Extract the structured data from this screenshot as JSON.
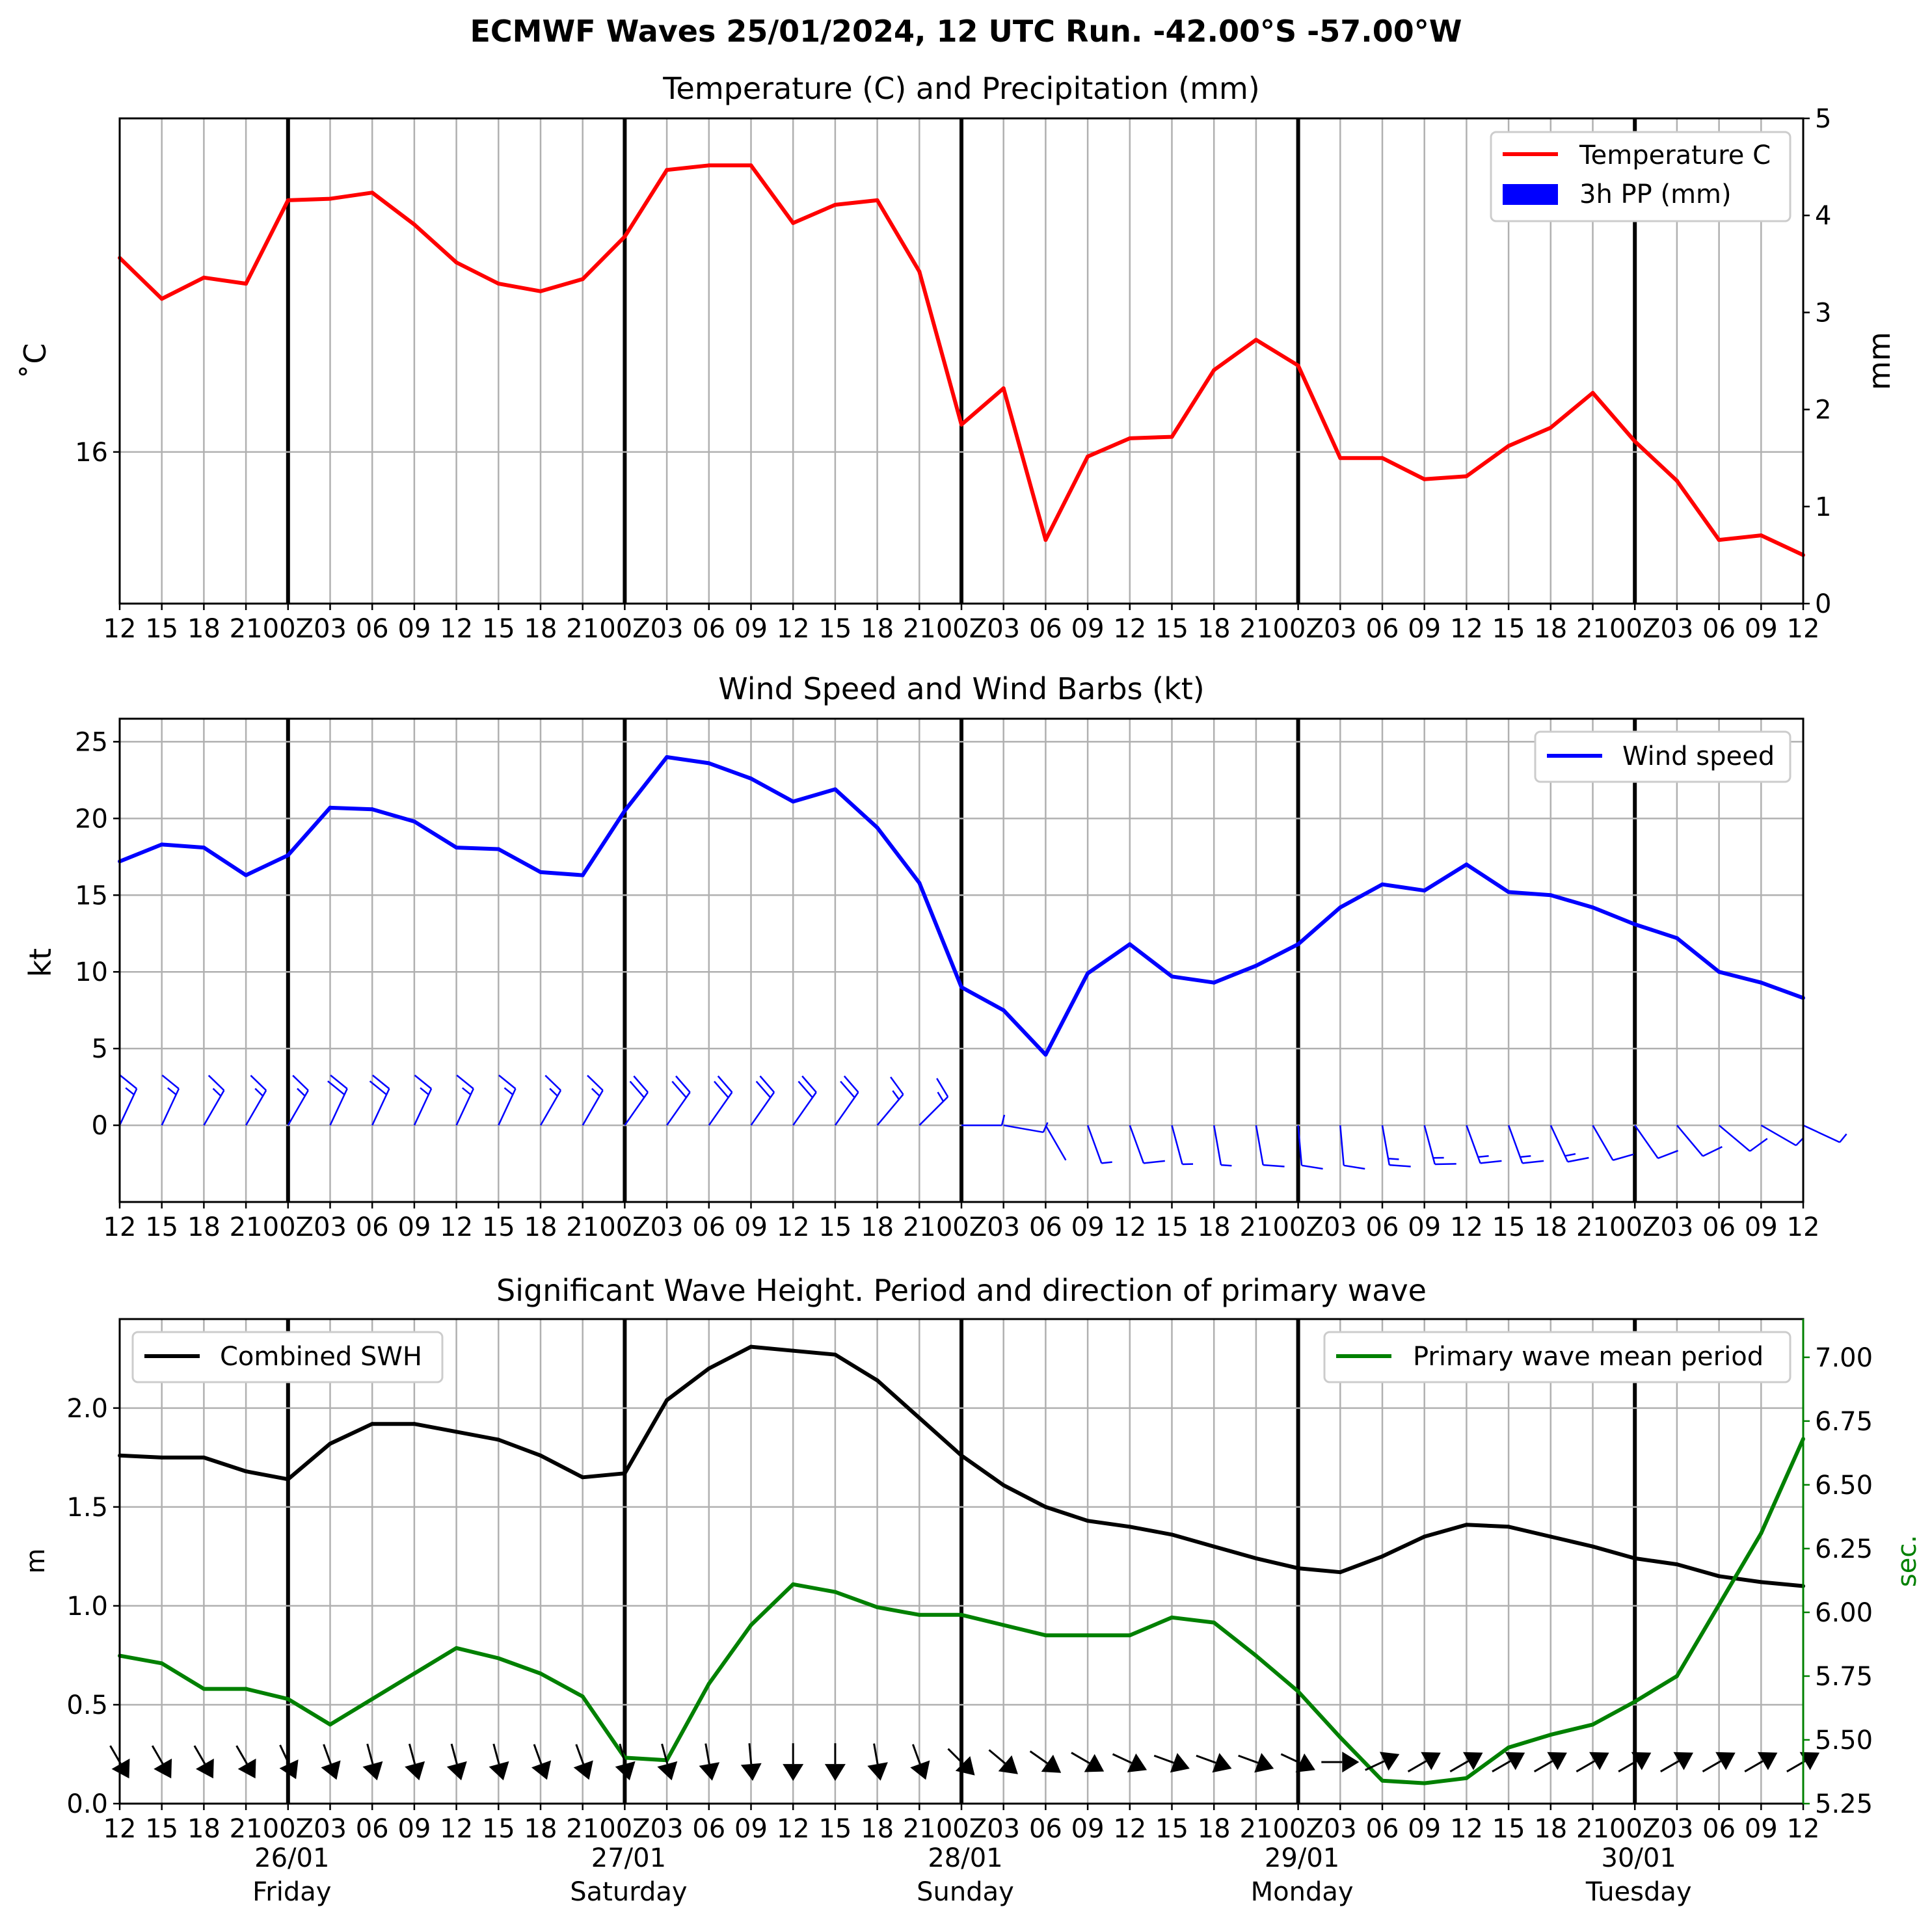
{
  "suptitle": "ECMWF Waves 25/01/2024, 12 UTC Run. -42.00°S -57.00°W",
  "x_tick_labels": [
    "12",
    "15",
    "18",
    "21",
    "00Z",
    "03",
    "06",
    "09",
    "12",
    "15",
    "18",
    "21",
    "00Z",
    "03",
    "06",
    "09",
    "12",
    "15",
    "18",
    "21",
    "00Z",
    "03",
    "06",
    "09",
    "12",
    "15",
    "18",
    "21",
    "00Z",
    "03",
    "06",
    "09",
    "12",
    "15",
    "18",
    "21",
    "00Z",
    "03",
    "06",
    "09",
    "12"
  ],
  "day_labels": [
    {
      "date": "26/01",
      "day": "Friday"
    },
    {
      "date": "27/01",
      "day": "Saturday"
    },
    {
      "date": "28/01",
      "day": "Sunday"
    },
    {
      "date": "29/01",
      "day": "Monday"
    },
    {
      "date": "30/01",
      "day": "Tuesday"
    }
  ],
  "colors": {
    "temperature": "#ff0000",
    "precipitation": "#0000ff",
    "wind": "#0000ff",
    "swh": "#000000",
    "period": "#008000",
    "grid": "#b0b0b0"
  },
  "chart_data": [
    {
      "type": "line",
      "title": "Temperature (C) and Precipitation (mm)",
      "ylabel": "$^\\circ$C",
      "ylabel_display": "˚C",
      "y2label": "mm",
      "ylim": [
        15.0,
        18.2
      ],
      "yticks": [
        16
      ],
      "y2lim": [
        0,
        5
      ],
      "y2ticks": [
        0,
        1,
        2,
        3,
        4,
        5
      ],
      "legend": [
        "Temperature C",
        "3h PP (mm)"
      ],
      "legend_loc": "upper right",
      "grid": true,
      "series": [
        {
          "name": "Temperature C",
          "axis": "left",
          "values": [
            17.28,
            17.01,
            17.15,
            17.11,
            17.66,
            17.67,
            17.71,
            17.5,
            17.25,
            17.11,
            17.06,
            17.14,
            17.42,
            17.86,
            17.89,
            17.89,
            17.51,
            17.63,
            17.66,
            17.19,
            16.18,
            16.42,
            15.42,
            15.97,
            16.09,
            16.1,
            16.54,
            16.74,
            16.57,
            15.96,
            15.96,
            15.82,
            15.84,
            16.04,
            16.16,
            16.39,
            16.07,
            15.81,
            15.42,
            15.45,
            15.32
          ]
        },
        {
          "name": "3h PP (mm)",
          "axis": "right",
          "type": "bar",
          "values": [
            0,
            0,
            0,
            0,
            0,
            0,
            0,
            0,
            0,
            0,
            0,
            0,
            0,
            0,
            0,
            0,
            0,
            0,
            0,
            0,
            0,
            0,
            0,
            0,
            0,
            0,
            0,
            0,
            0,
            0,
            0,
            0,
            0,
            0,
            0,
            0,
            0,
            0,
            0,
            0,
            0
          ]
        }
      ]
    },
    {
      "type": "line",
      "title": "Wind Speed and Wind Barbs (kt)",
      "ylabel": "kt",
      "ylim": [
        -5,
        26.5
      ],
      "yticks": [
        0,
        5,
        10,
        15,
        20,
        25
      ],
      "legend": [
        "Wind speed"
      ],
      "legend_loc": "upper right",
      "grid": true,
      "series": [
        {
          "name": "Wind speed",
          "values": [
            17.2,
            18.3,
            18.1,
            16.3,
            17.6,
            20.7,
            20.6,
            19.8,
            18.1,
            18.0,
            16.5,
            16.3,
            20.5,
            24.0,
            23.6,
            22.6,
            21.1,
            21.9,
            19.4,
            15.8,
            9.0,
            7.5,
            4.6,
            9.9,
            11.8,
            9.7,
            9.3,
            10.4,
            11.8,
            14.2,
            15.7,
            15.3,
            17.0,
            15.2,
            15.0,
            14.2,
            13.1,
            12.2,
            10.0,
            9.3,
            8.3
          ]
        }
      ],
      "barbs": {
        "y": 0,
        "direction_to_deg": [
          25,
          25,
          30,
          30,
          30,
          25,
          25,
          25,
          25,
          25,
          30,
          30,
          35,
          35,
          35,
          35,
          35,
          35,
          40,
          45,
          90,
          100,
          150,
          160,
          160,
          165,
          170,
          170,
          175,
          175,
          170,
          165,
          160,
          160,
          155,
          150,
          145,
          140,
          130,
          120,
          115
        ]
      }
    },
    {
      "type": "line",
      "title": "Significant Wave Height. Period and direction of primary wave",
      "ylabel": "m",
      "y2label": "sec.",
      "ylim": [
        0,
        2.45
      ],
      "yticks": [
        0.0,
        0.5,
        1.0,
        1.5,
        2.0
      ],
      "y2lim": [
        5.25,
        7.15
      ],
      "y2ticks": [
        5.25,
        5.5,
        5.75,
        6.0,
        6.25,
        6.5,
        6.75,
        7.0
      ],
      "legend": [
        "Combined SWH",
        "Primary wave mean period"
      ],
      "legend_loc": [
        "upper left",
        "upper right"
      ],
      "grid": true,
      "series": [
        {
          "name": "Combined SWH",
          "axis": "left",
          "values": [
            1.76,
            1.75,
            1.75,
            1.68,
            1.64,
            1.82,
            1.92,
            1.92,
            1.88,
            1.84,
            1.76,
            1.65,
            1.67,
            2.04,
            2.2,
            2.31,
            2.29,
            2.27,
            2.14,
            1.95,
            1.76,
            1.61,
            1.5,
            1.43,
            1.4,
            1.36,
            1.3,
            1.24,
            1.19,
            1.17,
            1.25,
            1.35,
            1.41,
            1.4,
            1.35,
            1.3,
            1.24,
            1.21,
            1.15,
            1.12,
            1.1
          ]
        },
        {
          "name": "Primary wave mean period",
          "axis": "right",
          "values": [
            5.83,
            5.8,
            5.7,
            5.7,
            5.66,
            5.56,
            5.66,
            5.76,
            5.86,
            5.82,
            5.76,
            5.67,
            5.43,
            5.42,
            5.72,
            5.95,
            6.11,
            6.08,
            6.02,
            5.99,
            5.99,
            5.95,
            5.91,
            5.91,
            5.91,
            5.98,
            5.96,
            5.83,
            5.69,
            5.51,
            5.34,
            5.33,
            5.35,
            5.47,
            5.52,
            5.56,
            5.65,
            5.75,
            6.03,
            6.31,
            6.68
          ]
        }
      ],
      "arrows": {
        "y": 0.21,
        "direction_to_deg": [
          150,
          150,
          150,
          150,
          155,
          160,
          165,
          165,
          165,
          165,
          160,
          160,
          165,
          165,
          170,
          175,
          180,
          180,
          170,
          160,
          135,
          130,
          125,
          120,
          115,
          110,
          110,
          110,
          115,
          90,
          65,
          60,
          60,
          60,
          60,
          60,
          60,
          60,
          60,
          60,
          60
        ]
      }
    }
  ]
}
